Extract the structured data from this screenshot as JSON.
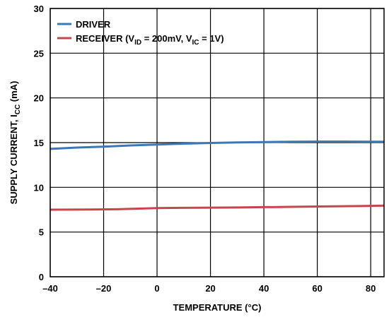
{
  "chart_data": {
    "type": "line",
    "xlabel": "TEMPERATURE (°C)",
    "ylabel": {
      "main": "SUPPLY CURRENT, I",
      "sub": "CC",
      "suffix": " (mA)"
    },
    "xlim": [
      -40,
      85
    ],
    "ylim": [
      0,
      30
    ],
    "x_ticks": [
      -40,
      -20,
      0,
      20,
      40,
      60,
      80
    ],
    "x_tick_labels": [
      "–40",
      "–20",
      "0",
      "20",
      "40",
      "60",
      "80"
    ],
    "y_ticks": [
      0,
      5,
      10,
      15,
      20,
      25,
      30
    ],
    "y_tick_labels": [
      "0",
      "5",
      "10",
      "15",
      "20",
      "25",
      "30"
    ],
    "grid": true,
    "legend_position": "top-left",
    "series": [
      {
        "name": "DRIVER",
        "color": "#3c78b9",
        "x": [
          -40,
          -30,
          -20,
          -10,
          0,
          10,
          20,
          30,
          40,
          50,
          60,
          70,
          85
        ],
        "y": [
          14.3,
          14.45,
          14.55,
          14.68,
          14.78,
          14.88,
          14.96,
          15.02,
          15.06,
          15.1,
          15.12,
          15.12,
          15.1
        ]
      },
      {
        "name": "RECEIVER",
        "color": "#c8464b",
        "x": [
          -40,
          -25,
          -15,
          0,
          15,
          30,
          45,
          60,
          75,
          85
        ],
        "y": [
          7.5,
          7.52,
          7.55,
          7.68,
          7.72,
          7.75,
          7.8,
          7.86,
          7.9,
          7.95
        ]
      }
    ],
    "legend": [
      {
        "label_parts": [
          {
            "text": "DRIVER",
            "sub": false
          }
        ]
      },
      {
        "label_parts": [
          {
            "text": "RECEIVER (V",
            "sub": false
          },
          {
            "text": "ID",
            "sub": true
          },
          {
            "text": " = 200mV, V",
            "sub": false
          },
          {
            "text": "IC",
            "sub": true
          },
          {
            "text": " = 1V)",
            "sub": false
          }
        ]
      }
    ]
  }
}
